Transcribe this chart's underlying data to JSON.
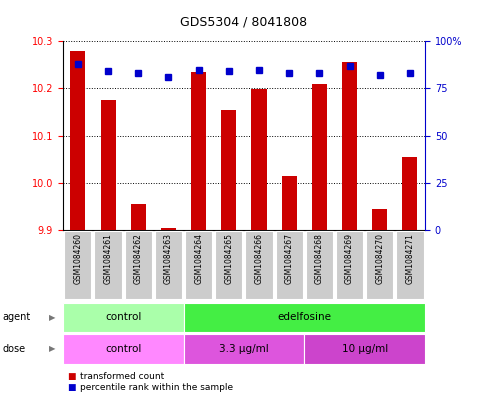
{
  "title": "GDS5304 / 8041808",
  "samples": [
    "GSM1084260",
    "GSM1084261",
    "GSM1084262",
    "GSM1084263",
    "GSM1084264",
    "GSM1084265",
    "GSM1084266",
    "GSM1084267",
    "GSM1084268",
    "GSM1084269",
    "GSM1084270",
    "GSM1084271"
  ],
  "bar_values": [
    10.28,
    10.175,
    9.955,
    9.905,
    10.235,
    10.155,
    10.198,
    10.015,
    10.21,
    10.255,
    9.945,
    10.055
  ],
  "percentile_values": [
    88,
    84,
    83,
    81,
    85,
    84,
    85,
    83,
    83,
    87,
    82,
    83
  ],
  "ymin": 9.9,
  "ymax": 10.3,
  "yticks": [
    9.9,
    10.0,
    10.1,
    10.2,
    10.3
  ],
  "y2ticks": [
    0,
    25,
    50,
    75,
    100
  ],
  "bar_color": "#cc0000",
  "dot_color": "#0000cc",
  "bar_width": 0.5,
  "agent_control_label": "control",
  "agent_edelfosine_label": "edelfosine",
  "dose_control_label": "control",
  "dose_33_label": "3.3 μg/ml",
  "dose_10_label": "10 μg/ml",
  "agent_row_label": "agent",
  "dose_row_label": "dose",
  "legend_red_label": "transformed count",
  "legend_blue_label": "percentile rank within the sample",
  "bg_color": "#ffffff",
  "tick_bg_color": "#cccccc",
  "agent_control_color": "#aaffaa",
  "agent_edelfosine_color": "#44ee44",
  "dose_control_color": "#ff88ff",
  "dose_33_color": "#dd55dd",
  "dose_10_color": "#cc44cc"
}
